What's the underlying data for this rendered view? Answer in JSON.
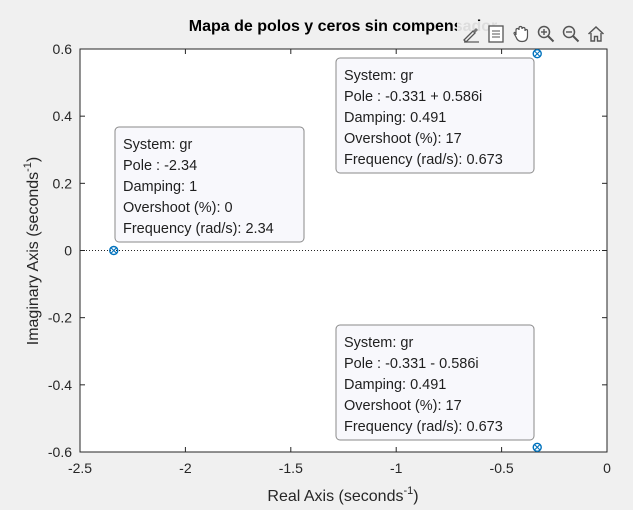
{
  "chart_data": {
    "type": "scatter",
    "title": "Mapa de polos y ceros sin compensador",
    "xlabel": "Real Axis (seconds",
    "xlabel_sup": "-1",
    "xlabel_suffix": ")",
    "ylabel": "Imaginary Axis (seconds",
    "ylabel_sup": "-1",
    "ylabel_suffix": ")",
    "xlim": [
      -2.5,
      0
    ],
    "ylim": [
      -0.6,
      0.6
    ],
    "xticks": [
      -2.5,
      -2,
      -1.5,
      -1,
      -0.5,
      0
    ],
    "xtick_labels": [
      "-2.5",
      "-2",
      "-1.5",
      "-1",
      "-0.5",
      "0"
    ],
    "yticks": [
      -0.6,
      -0.4,
      -0.2,
      0,
      0.2,
      0.4,
      0.6
    ],
    "ytick_labels": [
      "-0.6",
      "-0.4",
      "-0.2",
      "0",
      "0.2",
      "0.4",
      "0.6"
    ],
    "grid": false,
    "zero_line": "dotted",
    "marker_color": "#0072bd",
    "series": [
      {
        "points": [
          {
            "x": -2.34,
            "y": 0
          },
          {
            "x": -0.331,
            "y": 0.586
          },
          {
            "x": -0.331,
            "y": -0.586
          }
        ]
      }
    ],
    "annotations": [
      {
        "target": 0,
        "lines": [
          "System: gr",
          "Pole : -2.34",
          "Damping: 1",
          "Overshoot (%): 0",
          "Frequency (rad/s): 2.34"
        ]
      },
      {
        "target": 1,
        "lines": [
          "System: gr",
          "Pole : -0.331 + 0.586i",
          "Damping: 0.491",
          "Overshoot (%): 17",
          "Frequency (rad/s): 0.673"
        ]
      },
      {
        "target": 2,
        "lines": [
          "System: gr",
          "Pole : -0.331 - 0.586i",
          "Damping: 0.491",
          "Overshoot (%): 17",
          "Frequency (rad/s): 0.673"
        ]
      }
    ]
  },
  "toolbar": {
    "icons": [
      "brush-icon",
      "data-tips-icon",
      "pan-icon",
      "zoom-in-icon",
      "zoom-out-icon",
      "home-icon"
    ]
  }
}
